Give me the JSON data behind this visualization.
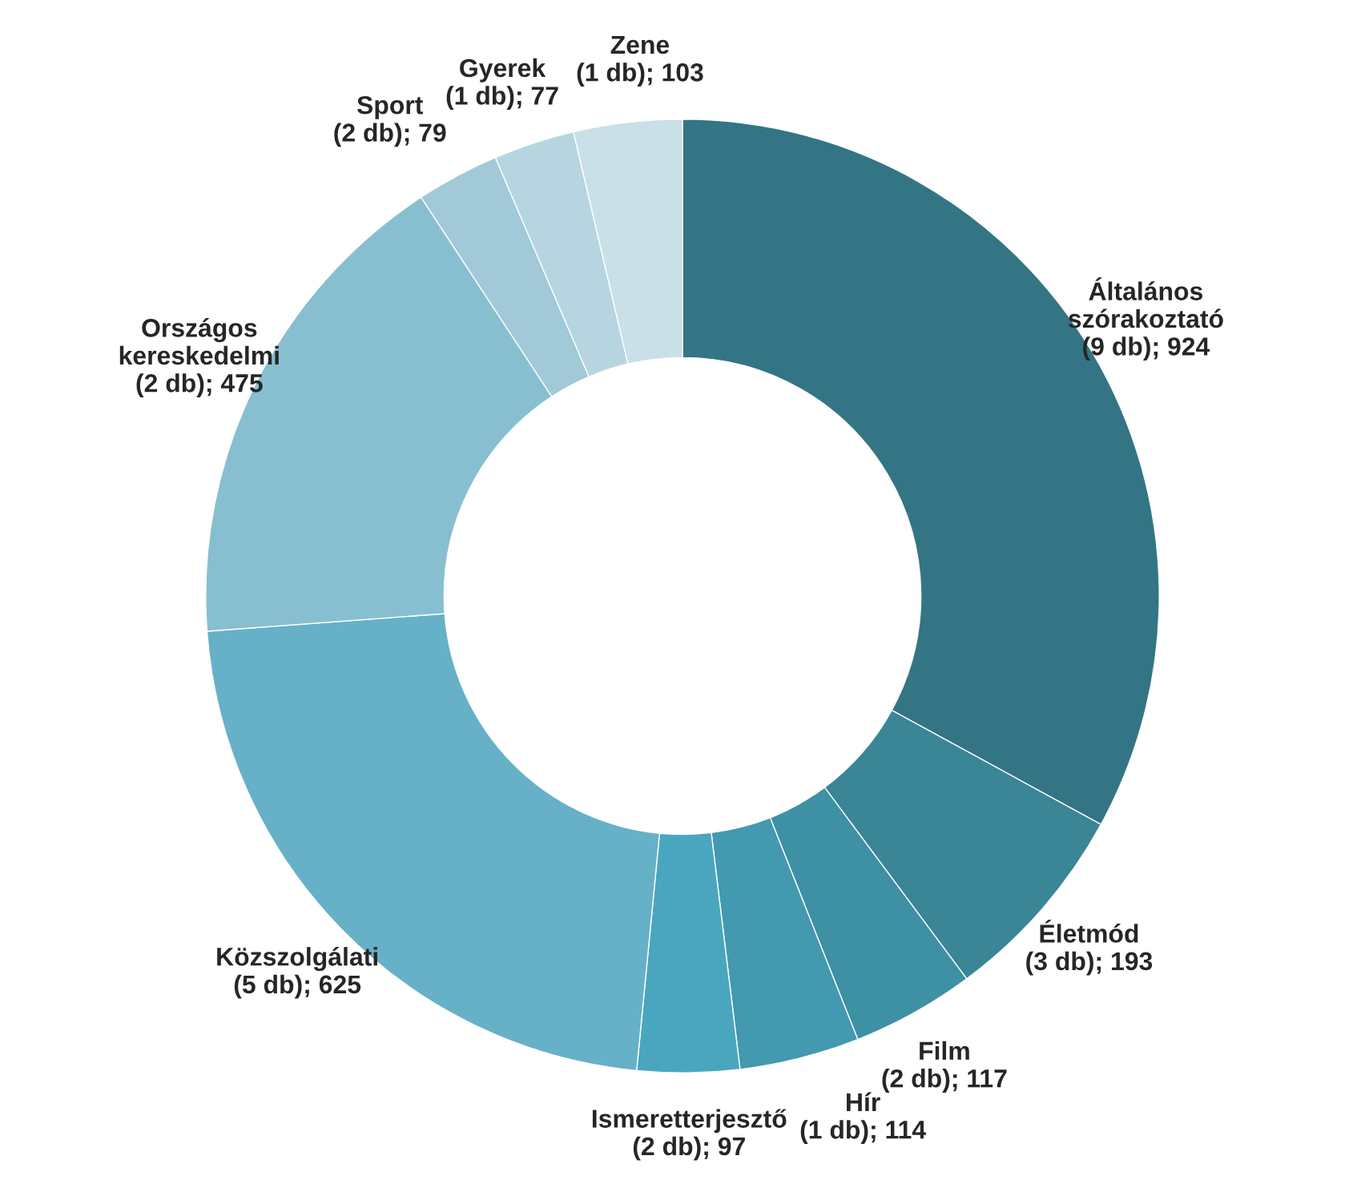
{
  "chart_data": {
    "type": "donut",
    "categories": [
      "Általános szórakoztató",
      "Életmód",
      "Film",
      "Hír",
      "Ismeretterjesztő",
      "Közszolgálati",
      "Országos kereskedelmi",
      "Sport",
      "Gyerek",
      "Zene"
    ],
    "value_labels": [
      "(9 db); 924",
      "(3 db); 193",
      "(2 db); 117",
      "(1 db); 114",
      "(2 db); 97",
      "(5 db); 625",
      "(2 db); 475",
      "(2 db); 79",
      "(1 db); 77",
      "(1 db); 103"
    ],
    "values": [
      924,
      193,
      117,
      114,
      97,
      625,
      475,
      79,
      77,
      103
    ],
    "colors": [
      "#337585",
      "#3a8596",
      "#3e90a5",
      "#4299b0",
      "#4aa6bf",
      "#66b1c8",
      "#88bfd0",
      "#a1c9d7",
      "#b6d5e0",
      "#c9e0e8"
    ],
    "legend": false
  }
}
